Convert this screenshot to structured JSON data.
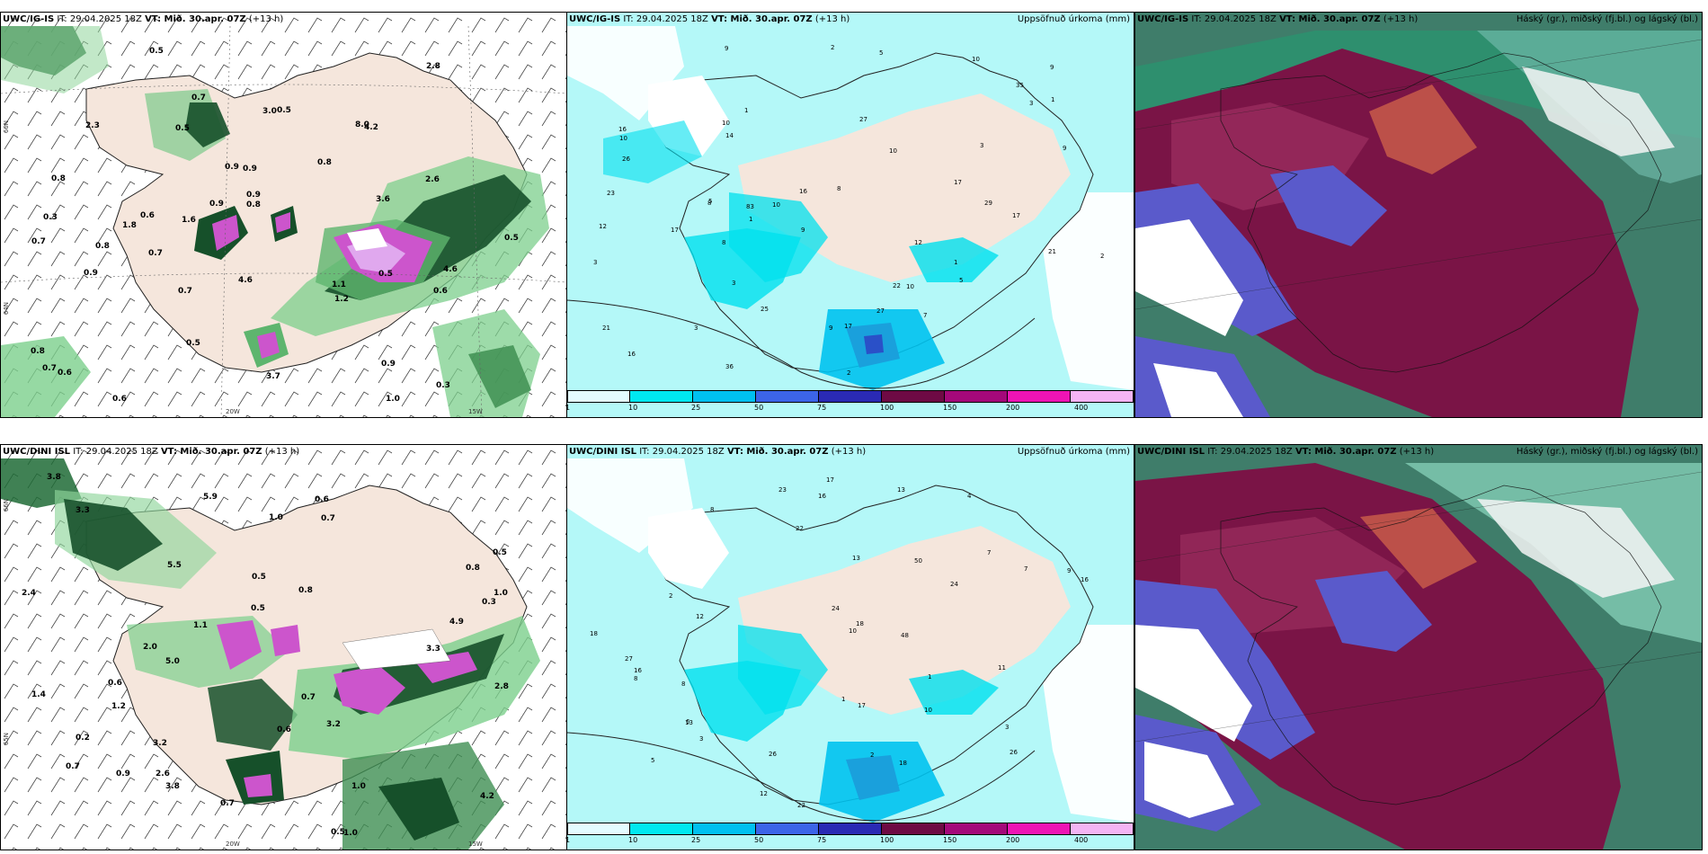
{
  "rows": [
    {
      "model": "UWC/IG-IS",
      "it_label": "IT: 29.04.2025 18Z",
      "vt_label": "VT: Mið. 30.apr. 07Z",
      "lead": "(+13 h)"
    },
    {
      "model": "UWC/DINI ISL",
      "it_label": "IT: 29.04.2025 18Z",
      "vt_label": "VT: Mið. 30.apr. 07Z",
      "lead": "(+13 h)"
    }
  ],
  "precip_panel_title": "Uppsöfnuð úrkoma (mm)",
  "cloud_panel_title": "Háský (gr.), miðský (fj.bl.) og lágský (bl.)",
  "colorbar": {
    "ticks": [
      "1",
      "10",
      "25",
      "50",
      "75",
      "100",
      "150",
      "200",
      "400"
    ],
    "colors": [
      "#e4fbff",
      "#00e8f0",
      "#00c0f0",
      "#3c64e8",
      "#2a2ab4",
      "#6e0a44",
      "#a4087a",
      "#ee14b4",
      "#f4b4f4"
    ]
  },
  "axis_labels": {
    "lon_20w": "20W",
    "lon_15w": "15W",
    "lat_66n": "66N",
    "lat_64n": "64N",
    "lat_65n": "65N"
  },
  "row1_rate_labels": [
    {
      "t": "1.8"
    },
    {
      "t": "1.6"
    },
    {
      "t": "2.3"
    },
    {
      "t": "0.3"
    },
    {
      "t": "0.9"
    },
    {
      "t": "0.9"
    },
    {
      "t": "0.5"
    },
    {
      "t": "0.8"
    },
    {
      "t": "1.0"
    },
    {
      "t": "0.3"
    },
    {
      "t": "0.7"
    },
    {
      "t": "0.5"
    },
    {
      "t": "0.5"
    },
    {
      "t": "0.6"
    },
    {
      "t": "0.8"
    },
    {
      "t": "0.9"
    },
    {
      "t": "0.5"
    },
    {
      "t": "0.9"
    },
    {
      "t": "2.6"
    },
    {
      "t": "4.2"
    },
    {
      "t": "2.8"
    },
    {
      "t": "3.6"
    },
    {
      "t": "4.6"
    },
    {
      "t": "8.0"
    },
    {
      "t": "3.7"
    },
    {
      "t": "4.6"
    },
    {
      "t": "1.2"
    },
    {
      "t": "3.0"
    },
    {
      "t": "0.6"
    },
    {
      "t": "0.8"
    },
    {
      "t": "0.7"
    },
    {
      "t": "0.5"
    },
    {
      "t": "0.6"
    },
    {
      "t": "0.9"
    },
    {
      "t": "0.7"
    },
    {
      "t": "0.8"
    },
    {
      "t": "0.6"
    },
    {
      "t": "0.5"
    },
    {
      "t": "0.8"
    },
    {
      "t": "0.7"
    },
    {
      "t": "0.9"
    },
    {
      "t": "1.1"
    },
    {
      "t": "0.7"
    }
  ],
  "row2_rate_labels": [
    {
      "t": "2.4"
    },
    {
      "t": "1.1"
    },
    {
      "t": "0.7"
    },
    {
      "t": "1.2"
    },
    {
      "t": "0.2"
    },
    {
      "t": "0.5"
    },
    {
      "t": "0.5"
    },
    {
      "t": "0.7"
    },
    {
      "t": "0.6"
    },
    {
      "t": "0.6"
    },
    {
      "t": "0.5"
    },
    {
      "t": "0.8"
    },
    {
      "t": "1.0"
    },
    {
      "t": "1.4"
    },
    {
      "t": "0.3"
    },
    {
      "t": "2.0"
    },
    {
      "t": "1.0"
    },
    {
      "t": "1.0"
    },
    {
      "t": "3.2"
    },
    {
      "t": "3.3"
    },
    {
      "t": "5.0"
    },
    {
      "t": "3.8"
    },
    {
      "t": "4.9"
    },
    {
      "t": "5.5"
    },
    {
      "t": "2.8"
    },
    {
      "t": "3.3"
    },
    {
      "t": "3.8"
    },
    {
      "t": "2.6"
    },
    {
      "t": "4.2"
    },
    {
      "t": "3.2"
    },
    {
      "t": "5.9"
    },
    {
      "t": "0.7"
    },
    {
      "t": "0.6"
    },
    {
      "t": "0.7"
    },
    {
      "t": "1.0"
    },
    {
      "t": "0.8"
    },
    {
      "t": "0.9"
    },
    {
      "t": "0.5"
    }
  ],
  "row1_precip_labels": [
    {
      "t": "5"
    },
    {
      "t": "8"
    },
    {
      "t": "7"
    },
    {
      "t": "22"
    },
    {
      "t": "10"
    },
    {
      "t": "12"
    },
    {
      "t": "17"
    },
    {
      "t": "9"
    },
    {
      "t": "5"
    },
    {
      "t": "10"
    },
    {
      "t": "9"
    },
    {
      "t": "5"
    },
    {
      "t": "3"
    },
    {
      "t": "10"
    },
    {
      "t": "27"
    },
    {
      "t": "35"
    },
    {
      "t": "29"
    },
    {
      "t": "9"
    },
    {
      "t": "10"
    },
    {
      "t": "8"
    },
    {
      "t": "10"
    },
    {
      "t": "21"
    },
    {
      "t": "16"
    },
    {
      "t": "25"
    },
    {
      "t": "26"
    },
    {
      "t": "27"
    },
    {
      "t": "21"
    },
    {
      "t": "9"
    },
    {
      "t": "12"
    },
    {
      "t": "17"
    },
    {
      "t": "16"
    },
    {
      "t": "17"
    },
    {
      "t": "16"
    },
    {
      "t": "8"
    },
    {
      "t": "9"
    },
    {
      "t": "10"
    },
    {
      "t": "14"
    },
    {
      "t": "17"
    },
    {
      "t": "2"
    },
    {
      "t": "3"
    },
    {
      "t": "2"
    },
    {
      "t": "1"
    },
    {
      "t": "1"
    },
    {
      "t": "1"
    },
    {
      "t": "3"
    },
    {
      "t": "2"
    },
    {
      "t": "1"
    },
    {
      "t": "3"
    },
    {
      "t": "3"
    },
    {
      "t": "23"
    },
    {
      "t": "36"
    },
    {
      "t": "83"
    }
  ],
  "row2_precip_labels": [
    {
      "t": "5"
    },
    {
      "t": "4"
    },
    {
      "t": "8"
    },
    {
      "t": "7"
    },
    {
      "t": "17"
    },
    {
      "t": "12"
    },
    {
      "t": "8"
    },
    {
      "t": "6"
    },
    {
      "t": "7"
    },
    {
      "t": "24"
    },
    {
      "t": "27"
    },
    {
      "t": "17"
    },
    {
      "t": "10"
    },
    {
      "t": "10"
    },
    {
      "t": "22"
    },
    {
      "t": "23"
    },
    {
      "t": "26"
    },
    {
      "t": "18"
    },
    {
      "t": "13"
    },
    {
      "t": "12"
    },
    {
      "t": "18"
    },
    {
      "t": "16"
    },
    {
      "t": "22"
    },
    {
      "t": "18"
    },
    {
      "t": "24"
    },
    {
      "t": "26"
    },
    {
      "t": "16"
    },
    {
      "t": "13"
    },
    {
      "t": "13"
    },
    {
      "t": "1"
    },
    {
      "t": "2"
    },
    {
      "t": "3"
    },
    {
      "t": "2"
    },
    {
      "t": "1"
    },
    {
      "t": "3"
    },
    {
      "t": "8"
    },
    {
      "t": "9"
    },
    {
      "t": "48"
    },
    {
      "t": "50"
    },
    {
      "t": "11"
    },
    {
      "t": "16"
    }
  ]
}
